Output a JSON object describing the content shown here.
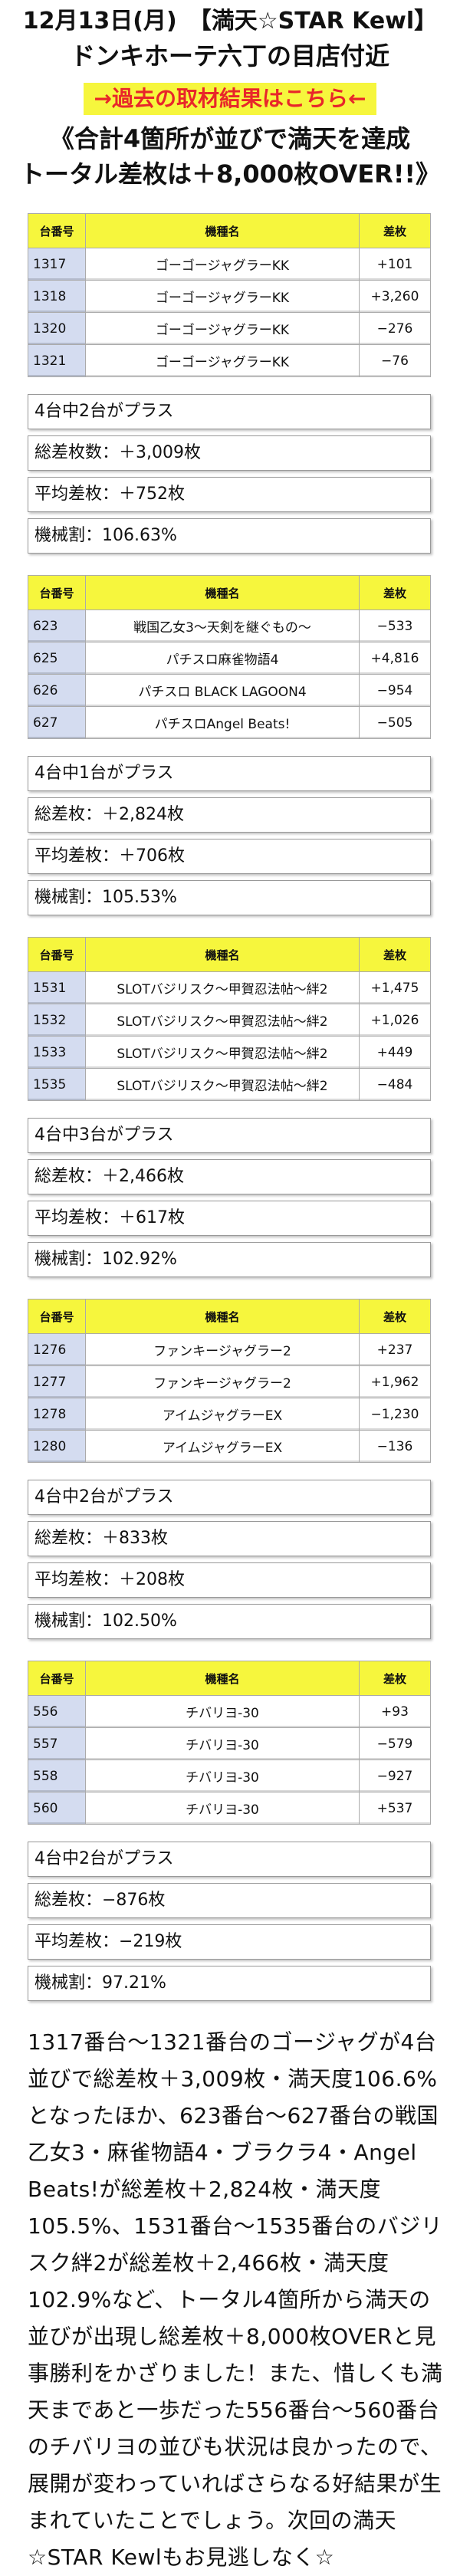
{
  "header": {
    "title": "12月13日(月)　【満天☆STAR Kewl】",
    "location": "ドンキホーテ六丁の目店付近",
    "link_label": "→過去の取材結果はこちら←",
    "headline_1": "《合計4箇所が並びで満天を達成",
    "headline_2": "トータル差枚は＋8,000枚OVER!!》"
  },
  "table_headers": {
    "num": "台番号",
    "name": "機種名",
    "diff": "差枚"
  },
  "sections": [
    {
      "rows": [
        {
          "num": "1317",
          "name": "ゴーゴージャグラーKK",
          "diff": "+101"
        },
        {
          "num": "1318",
          "name": "ゴーゴージャグラーKK",
          "diff": "+3,260"
        },
        {
          "num": "1320",
          "name": "ゴーゴージャグラーKK",
          "diff": "−276"
        },
        {
          "num": "1321",
          "name": "ゴーゴージャグラーKK",
          "diff": "−76"
        }
      ],
      "plus_count": "4台中2台がプラス",
      "total": "総差枚数：＋3,009枚",
      "avg": "平均差枚：＋752枚",
      "rate": "機械割：106.63%"
    },
    {
      "rows": [
        {
          "num": "623",
          "name": "戦国乙女3〜天剣を継ぐもの〜",
          "diff": "−533"
        },
        {
          "num": "625",
          "name": "パチスロ麻雀物語4",
          "diff": "+4,816"
        },
        {
          "num": "626",
          "name": "パチスロ BLACK LAGOON4",
          "diff": "−954"
        },
        {
          "num": "627",
          "name": "パチスロAngel Beats!",
          "diff": "−505"
        }
      ],
      "plus_count": "4台中1台がプラス",
      "total": "総差枚：＋2,824枚",
      "avg": "平均差枚：＋706枚",
      "rate": "機械割：105.53%"
    },
    {
      "rows": [
        {
          "num": "1531",
          "name": "SLOTバジリスク〜甲賀忍法帖〜絆2",
          "diff": "+1,475"
        },
        {
          "num": "1532",
          "name": "SLOTバジリスク〜甲賀忍法帖〜絆2",
          "diff": "+1,026"
        },
        {
          "num": "1533",
          "name": "SLOTバジリスク〜甲賀忍法帖〜絆2",
          "diff": "+449"
        },
        {
          "num": "1535",
          "name": "SLOTバジリスク〜甲賀忍法帖〜絆2",
          "diff": "−484"
        }
      ],
      "plus_count": "4台中3台がプラス",
      "total": "総差枚：＋2,466枚",
      "avg": "平均差枚：＋617枚",
      "rate": "機械割：102.92%"
    },
    {
      "rows": [
        {
          "num": "1276",
          "name": "ファンキージャグラー2",
          "diff": "+237"
        },
        {
          "num": "1277",
          "name": "ファンキージャグラー2",
          "diff": "+1,962"
        },
        {
          "num": "1278",
          "name": "アイムジャグラーEX",
          "diff": "−1,230"
        },
        {
          "num": "1280",
          "name": "アイムジャグラーEX",
          "diff": "−136"
        }
      ],
      "plus_count": "4台中2台がプラス",
      "total": "総差枚：＋833枚",
      "avg": "平均差枚：＋208枚",
      "rate": "機械割：102.50%"
    },
    {
      "rows": [
        {
          "num": "556",
          "name": "チバリヨ-30",
          "diff": "+93"
        },
        {
          "num": "557",
          "name": "チバリヨ-30",
          "diff": "−579"
        },
        {
          "num": "558",
          "name": "チバリヨ-30",
          "diff": "−927"
        },
        {
          "num": "560",
          "name": "チバリヨ-30",
          "diff": "+537"
        }
      ],
      "plus_count": "4台中2台がプラス",
      "total": "総差枚：−876枚",
      "avg": "平均差枚：−219枚",
      "rate": "機械割：97.21%"
    }
  ],
  "body_text": "1317番台〜1321番台のゴージャグが4台並びで総差枚＋3,009枚・満天度106.6%となったほか、623番台〜627番台の戦国乙女3・麻雀物語4・ブラクラ4・Angel Beats!が総差枚＋2,824枚・満天度105.5%、1531番台〜1535番台のバジリスク絆2が総差枚＋2,466枚・満天度102.9%など、トータル4箇所から満天の並びが出現し総差枚＋8,000枚OVERと見事勝利をかざりました！また、惜しくも満天まであと一歩だった556番台〜560番台のチバリヨの並びも状況は良かったので、展開が変わっていればさらなる好結果が生まれていたことでしょう。次回の満天☆STAR Kewlもお見逃しなく☆"
}
